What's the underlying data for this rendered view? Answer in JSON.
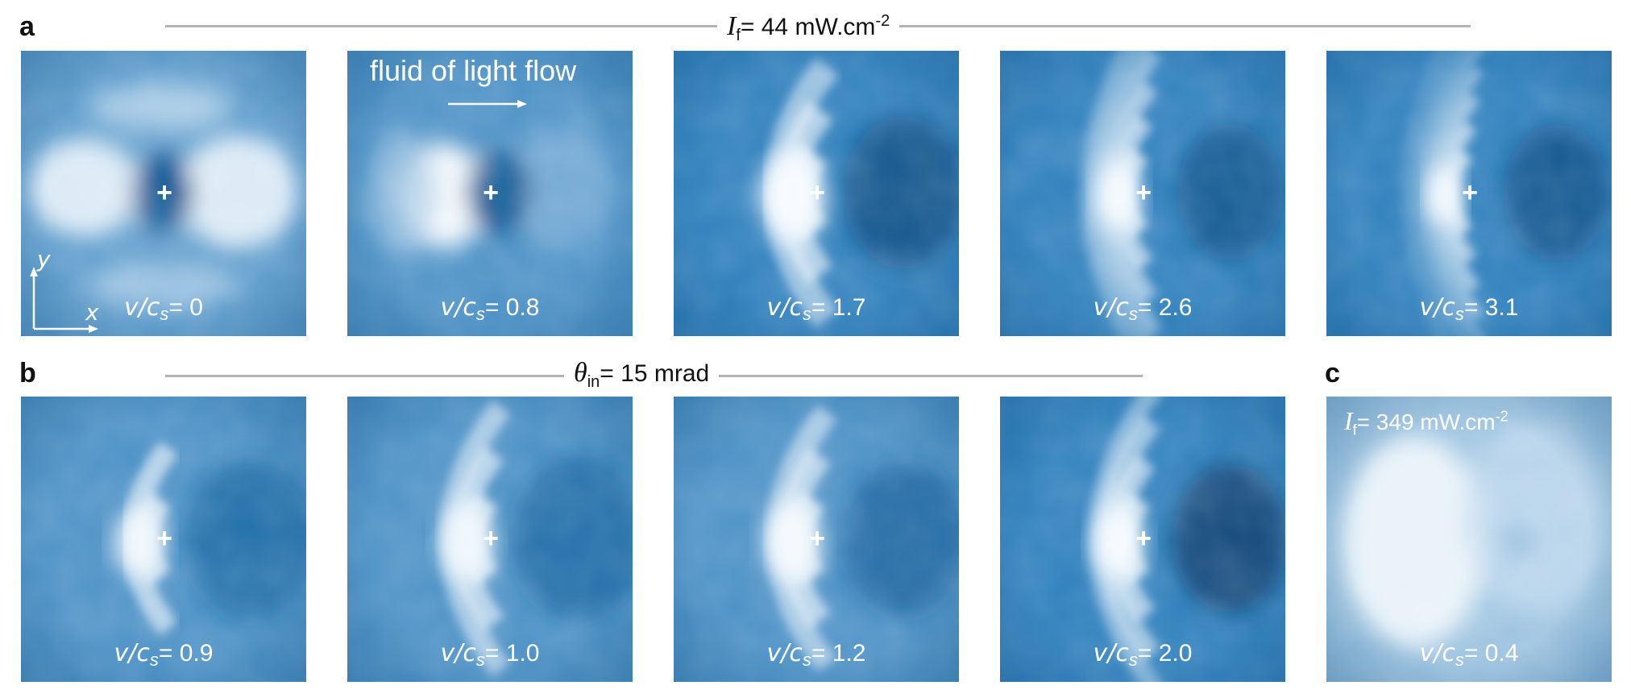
{
  "panels": {
    "a": "a",
    "b": "b",
    "c": "c"
  },
  "header_a": {
    "symbol": "I",
    "subscript": "f",
    "text": "= 44 mW.cm",
    "superscript": "-2"
  },
  "header_b": {
    "symbol": "θ",
    "subscript": "in",
    "text": "= 15 mrad"
  },
  "flow_label": "fluid of light flow",
  "axes": {
    "x": "x",
    "y": "y"
  },
  "tile_c_intensity": {
    "symbol": "I",
    "subscript": "f",
    "text": "= 349 mW.cm",
    "superscript": "-2"
  },
  "ratio_symbol": {
    "v": "v",
    "slash": "/c",
    "sub": "s"
  },
  "row_a": [
    {
      "ratio": "= 0",
      "mode": 0
    },
    {
      "ratio": "= 0.8",
      "mode": 1
    },
    {
      "ratio": "= 1.7",
      "mode": 2
    },
    {
      "ratio": "= 2.6",
      "mode": 3
    },
    {
      "ratio": "= 3.1",
      "mode": 4
    }
  ],
  "row_b": [
    {
      "ratio": "= 0.9",
      "mode": 5
    },
    {
      "ratio": "= 1.0",
      "mode": 6
    },
    {
      "ratio": "= 1.2",
      "mode": 7
    },
    {
      "ratio": "= 2.0",
      "mode": 8
    }
  ],
  "tile_c": {
    "ratio": "= 0.4",
    "mode": 9
  },
  "colors": {
    "deep": "#0f5f98",
    "mid": "#2c7fb8",
    "light": "#eef5fb"
  }
}
